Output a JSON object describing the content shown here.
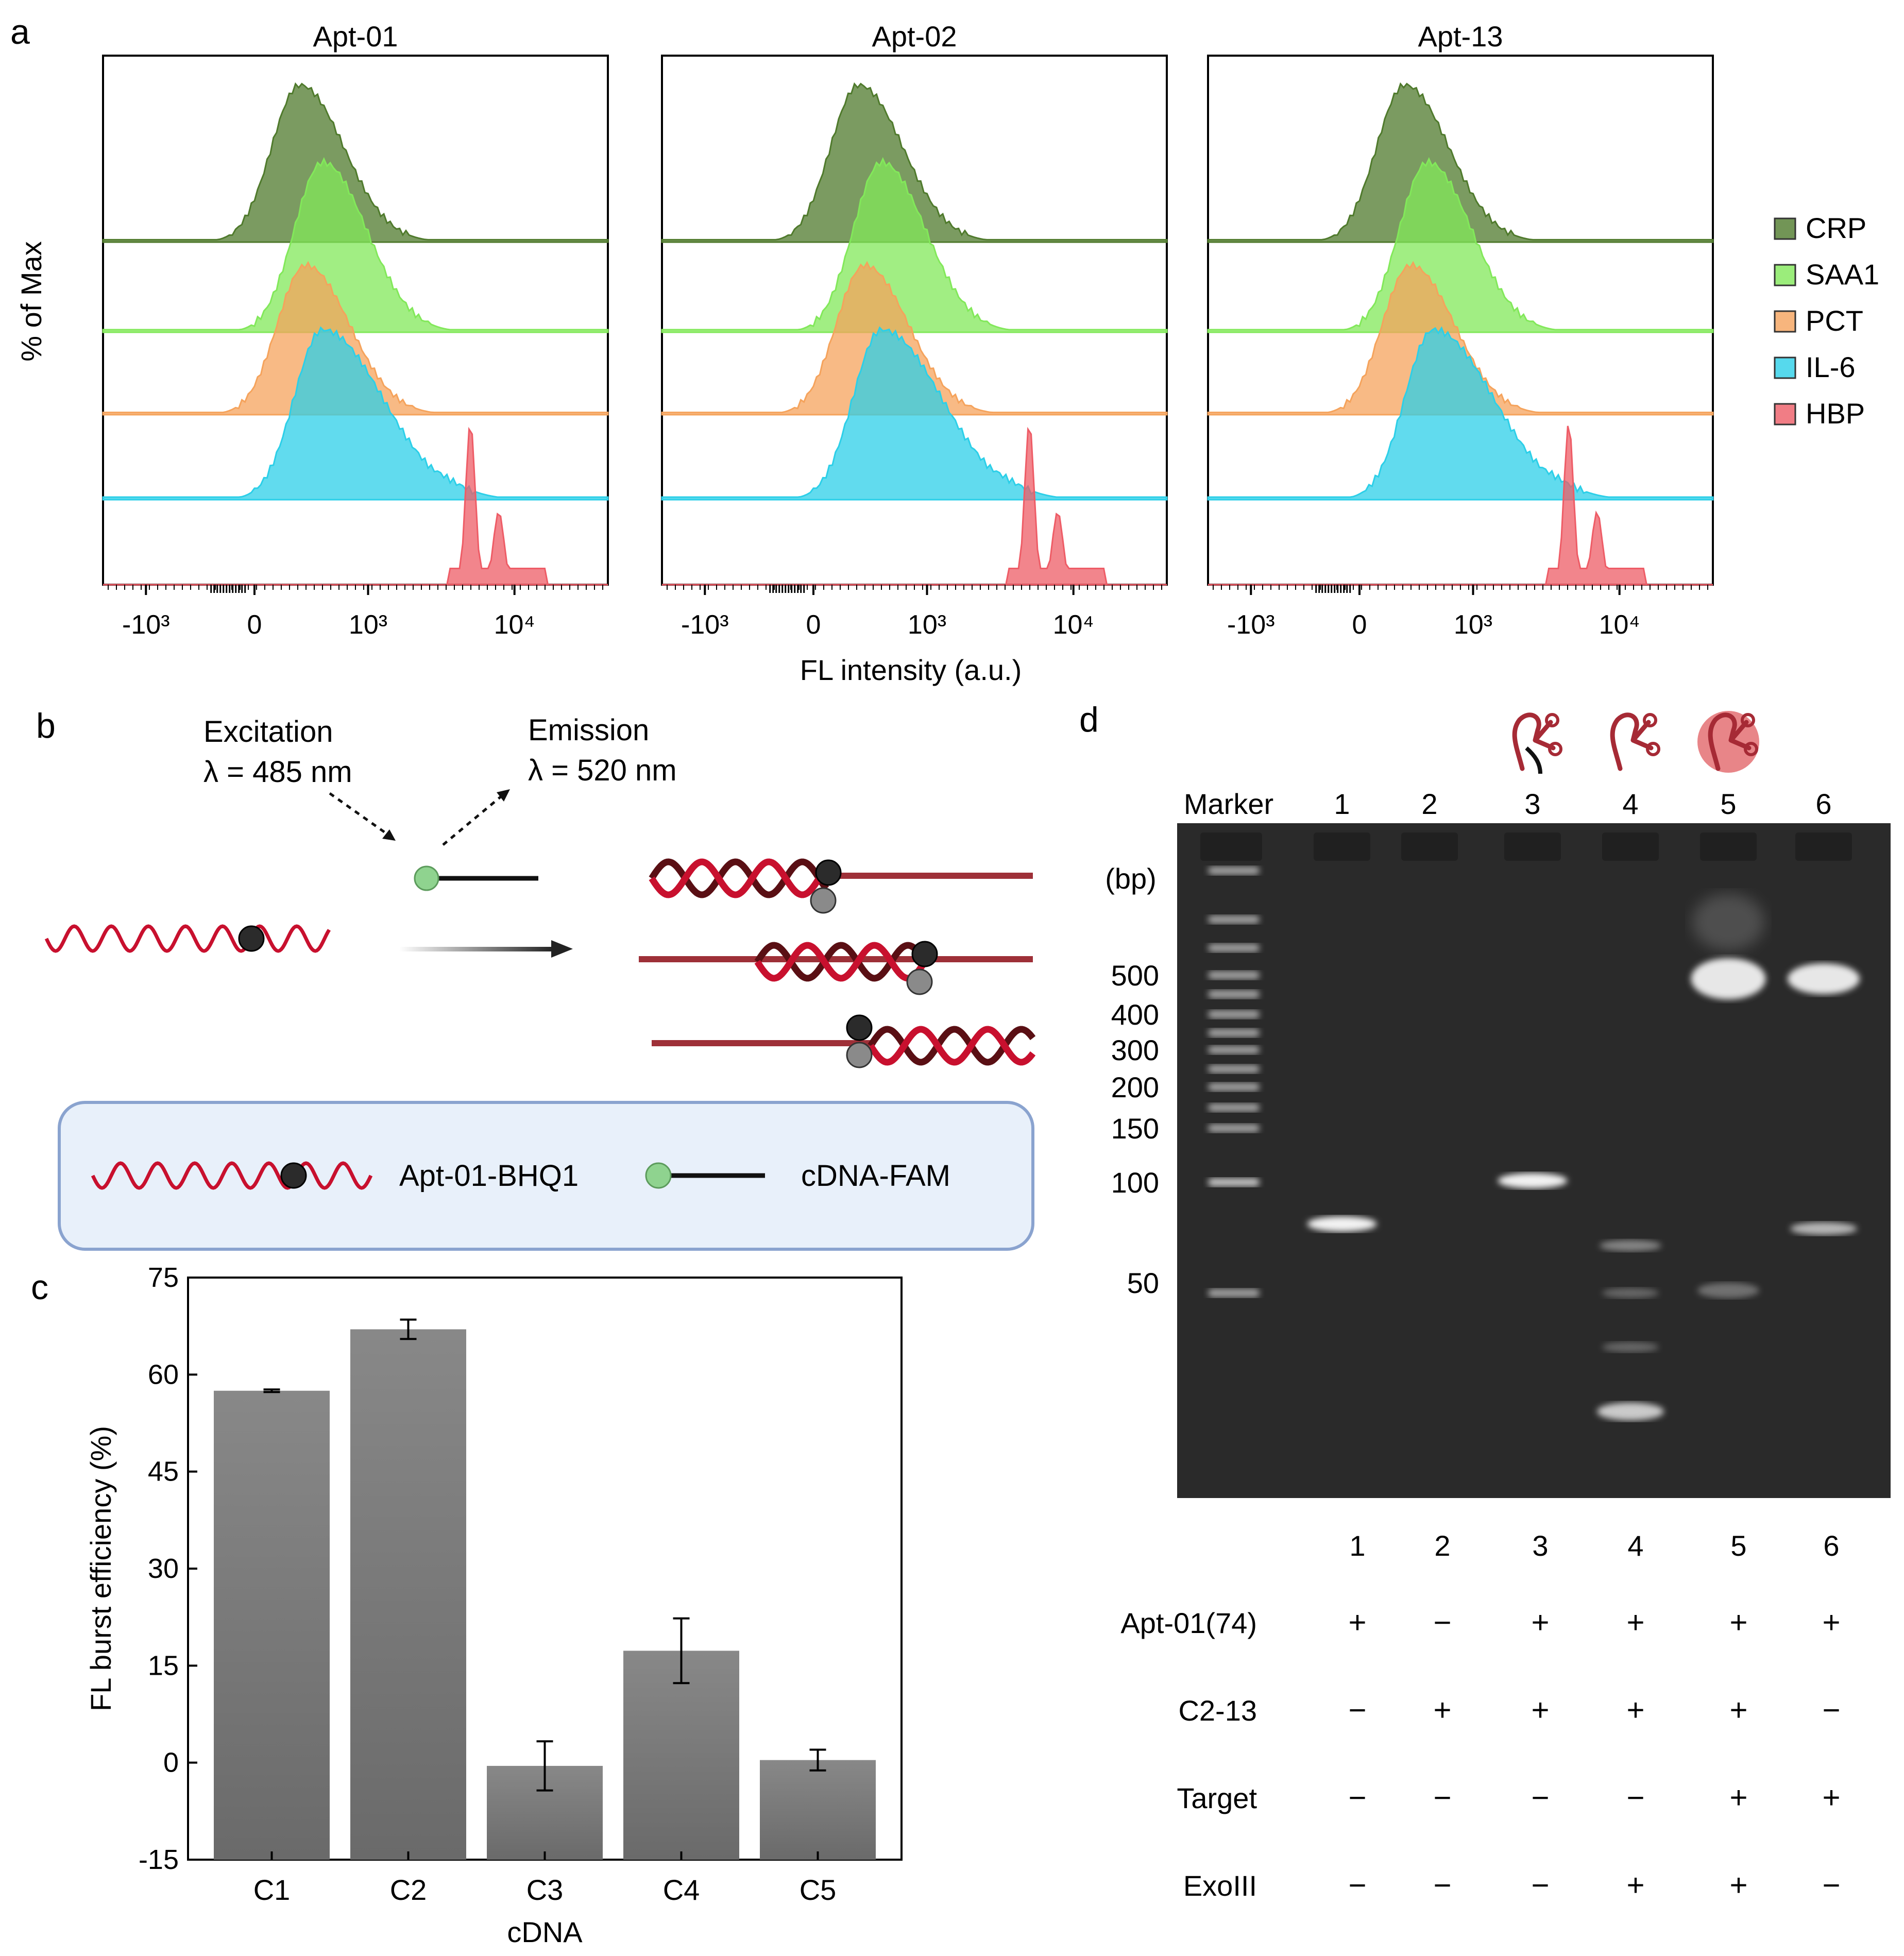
{
  "panel_labels": [
    "a",
    "b",
    "c",
    "d"
  ],
  "colors": {
    "CRP": "#4f7a2c",
    "SAA1": "#82e85a",
    "PCT": "#f5a35c",
    "IL-6": "#2ccfe8",
    "HBP": "#ee5c66",
    "dna_red": "#c8102e",
    "dna_dark": "#5a0f14",
    "strand": "#9e3038",
    "fam": "#8fd38f",
    "bhq": "#2b2b2b",
    "bhq_light": "#8a8a8a",
    "bar": "#7b7b7b",
    "gel_bg": "#2a2a2a",
    "legend_box_fill": "#e8f0fa",
    "legend_box_stroke": "#8aa3cf"
  },
  "panel_a": {
    "y_label": "% of Max",
    "x_label": "FL intensity (a.u.)",
    "legend": [
      "CRP",
      "SAA1",
      "PCT",
      "IL-6",
      "HBP"
    ],
    "tick_labels": [
      "-10³",
      "0",
      "10³",
      "10⁴"
    ],
    "plots": [
      {
        "title": "Apt-01",
        "peaks": {
          "CRP": 400,
          "SAA1": 600,
          "PCT": 450,
          "IL-6": 600,
          "HBP": 5000
        }
      },
      {
        "title": "Apt-02",
        "peaks": {
          "CRP": 400,
          "SAA1": 600,
          "PCT": 450,
          "IL-6": 600,
          "HBP": 5000
        }
      },
      {
        "title": "Apt-13",
        "peaks": {
          "CRP": 400,
          "SAA1": 600,
          "PCT": 450,
          "IL-6": 650,
          "HBP": 4500
        }
      }
    ]
  },
  "panel_b": {
    "excitation": "Excitation",
    "excitation_wl": "λ = 485 nm",
    "emission": "Emission",
    "emission_wl": "λ = 520 nm",
    "legend_aptamer": "Apt-01-BHQ1",
    "legend_cdna": "cDNA-FAM"
  },
  "chart_data": {
    "type": "bar",
    "title": "",
    "categories": [
      "C1",
      "C2",
      "C3",
      "C4",
      "C5"
    ],
    "values": [
      57.5,
      67,
      -0.5,
      17.3,
      0.4
    ],
    "errors": [
      0.2,
      1.5,
      3.8,
      5.0,
      1.6
    ],
    "xlabel": "cDNA",
    "ylabel": "FL burst efficiency (%)",
    "ylim": [
      -15,
      75
    ],
    "yticks": [
      -15,
      0,
      15,
      30,
      45,
      60,
      75
    ],
    "grid": false
  },
  "panel_d": {
    "marker_label": "Marker",
    "lane_numbers": [
      "1",
      "2",
      "3",
      "4",
      "5",
      "6"
    ],
    "bp_unit": "(bp)",
    "bp_marks": [
      "500",
      "400",
      "300",
      "200",
      "150",
      "100",
      "50"
    ],
    "table_rows": [
      {
        "label": "Apt-01(74)",
        "values": [
          "+",
          "−",
          "+",
          "+",
          "+",
          "+"
        ]
      },
      {
        "label": "C2-13",
        "values": [
          "−",
          "+",
          "+",
          "+",
          "+",
          "−"
        ]
      },
      {
        "label": "Target",
        "values": [
          "−",
          "−",
          "−",
          "−",
          "+",
          "+"
        ]
      },
      {
        "label": "ExoIII",
        "values": [
          "−",
          "−",
          "−",
          "+",
          "+",
          "−"
        ]
      }
    ]
  }
}
